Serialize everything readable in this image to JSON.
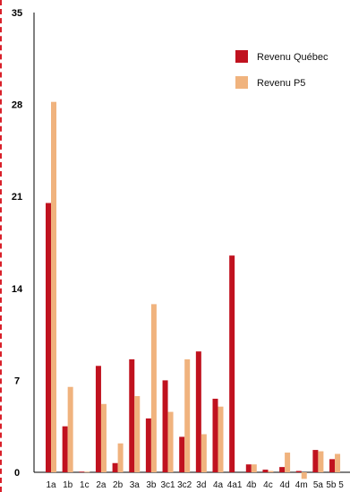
{
  "chart_data": {
    "type": "bar",
    "categories": [
      "1a",
      "1b",
      "1c",
      "2a",
      "2b",
      "3a",
      "3b",
      "3c1",
      "3c2",
      "3d",
      "4a",
      "4a1",
      "4b",
      "4c",
      "4d",
      "4m",
      "5a",
      "5b"
    ],
    "category_labels": [
      "1a",
      "1b",
      "1c",
      "2a",
      "2b",
      "3a",
      "3b",
      "3c1",
      "3c2",
      "3d",
      "4a",
      "4a1",
      "4b",
      "4c",
      "4d",
      "4m",
      "5a",
      "5b 5"
    ],
    "series": [
      {
        "name": "Revenu Québec",
        "color": "#c0121f",
        "values": [
          20.5,
          3.5,
          0.05,
          8.1,
          0.7,
          8.6,
          4.1,
          7.0,
          2.7,
          9.2,
          5.6,
          16.5,
          0.6,
          0.2,
          0.4,
          0.1,
          1.7,
          1.0
        ]
      },
      {
        "name": "Revenu P5",
        "color": "#f0b37e",
        "values": [
          28.2,
          6.5,
          0.05,
          5.2,
          2.2,
          5.8,
          12.8,
          4.6,
          8.6,
          2.9,
          5.0,
          0.0,
          0.6,
          0.1,
          1.5,
          -0.5,
          1.6,
          1.4
        ]
      }
    ],
    "ylim": [
      0,
      35
    ],
    "yticks": [
      "0",
      "7",
      "14",
      "21",
      "28",
      "35"
    ],
    "legend": "top-right",
    "grid": false
  }
}
